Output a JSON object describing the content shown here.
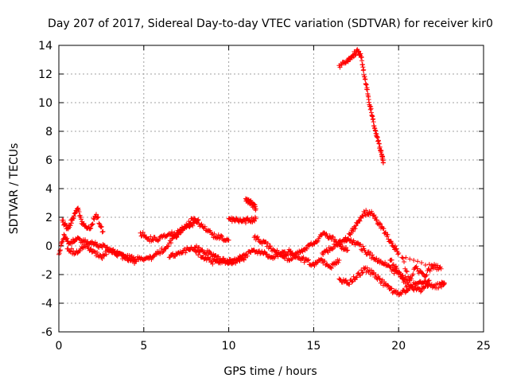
{
  "chart_data": {
    "type": "scatter",
    "title": "Day 207 of 2017, Sidereal Day-to-day VTEC variation (SDTVAR) for receiver kir0",
    "xlabel": "GPS time / hours",
    "ylabel": "SDTVAR / TECUs",
    "xlim": [
      0,
      25
    ],
    "ylim": [
      -6,
      14
    ],
    "xticks": [
      "0",
      "5",
      "10",
      "15",
      "20",
      "25"
    ],
    "yticks": [
      "-6",
      "-4",
      "-2",
      "0",
      "2",
      "4",
      "6",
      "8",
      "10",
      "12",
      "14"
    ],
    "marker": "+",
    "color": "#ff0000",
    "grid": true,
    "series": [
      {
        "name": "main-band",
        "x": [
          0.0,
          0.3,
          0.6,
          1.0,
          1.5,
          2.0,
          2.5,
          3.0,
          3.5,
          4.0,
          4.5,
          5.0,
          5.5,
          6.0,
          6.5,
          7.0,
          7.5,
          8.0,
          8.5,
          9.0,
          9.5,
          10.0
        ],
        "y": [
          -0.6,
          0.8,
          0.2,
          0.5,
          0.3,
          0.2,
          0.0,
          -0.3,
          -0.5,
          -0.8,
          -0.9,
          -1.0,
          -0.8,
          -0.4,
          0.2,
          0.8,
          1.5,
          1.9,
          1.3,
          0.8,
          0.6,
          0.4
        ]
      },
      {
        "name": "band-upper-a",
        "x": [
          0.2,
          0.5,
          0.8,
          1.1,
          1.4,
          1.8,
          2.2,
          2.6
        ],
        "y": [
          1.8,
          1.2,
          1.8,
          2.6,
          1.5,
          1.2,
          2.2,
          1.0
        ]
      },
      {
        "name": "band-lower-a",
        "x": [
          0.5,
          1.0,
          1.5,
          2.0,
          2.5,
          3.0,
          3.5,
          4.0,
          4.5
        ],
        "y": [
          -0.2,
          -0.5,
          0.1,
          -0.4,
          -0.8,
          -0.2,
          -0.6,
          -0.9,
          -1.1
        ]
      },
      {
        "name": "band-mid-b",
        "x": [
          4.8,
          5.3,
          5.8,
          6.3,
          6.8,
          7.3,
          7.8,
          8.2
        ],
        "y": [
          0.9,
          0.5,
          0.4,
          0.7,
          0.9,
          1.1,
          1.5,
          1.8
        ]
      },
      {
        "name": "band-lower-b",
        "x": [
          6.5,
          7.0,
          7.5,
          8.0,
          8.5,
          9.0,
          9.5,
          10.0,
          10.5,
          11.0,
          11.5
        ],
        "y": [
          -0.8,
          -0.5,
          -0.3,
          -0.1,
          -0.4,
          -0.6,
          -0.9,
          -1.2,
          -1.0,
          -0.6,
          -0.3
        ]
      },
      {
        "name": "band-c",
        "x": [
          8.0,
          8.5,
          9.0,
          9.5,
          10.0,
          10.5,
          11.0
        ],
        "y": [
          -0.3,
          -0.8,
          -1.1,
          -1.2,
          -1.1,
          -1.0,
          -0.8
        ]
      },
      {
        "name": "segment-10-11",
        "x": [
          10.0,
          10.4,
          10.8,
          11.2,
          11.6
        ],
        "y": [
          1.9,
          1.8,
          1.7,
          1.8,
          1.9
        ]
      },
      {
        "name": "segment-11",
        "x": [
          11.0,
          11.2,
          11.4,
          11.6
        ],
        "y": [
          3.3,
          3.1,
          2.9,
          2.6
        ]
      },
      {
        "name": "mid-band",
        "x": [
          11.5,
          12.0,
          12.5,
          13.0,
          13.5,
          14.0,
          14.5,
          15.0,
          15.5,
          16.0,
          16.5,
          17.0
        ],
        "y": [
          0.6,
          0.3,
          -0.2,
          -0.6,
          -0.9,
          -0.6,
          -0.3,
          0.2,
          0.8,
          0.6,
          0.1,
          -0.3
        ]
      },
      {
        "name": "mid-band-lower",
        "x": [
          11.5,
          12.0,
          12.5,
          13.0,
          13.5,
          14.0,
          14.5,
          15.0,
          15.5,
          16.0,
          16.5
        ],
        "y": [
          -0.3,
          -0.5,
          -0.8,
          -0.6,
          -0.4,
          -0.7,
          -1.0,
          -1.3,
          -1.0,
          -1.5,
          -1.0
        ]
      },
      {
        "name": "late-upper",
        "x": [
          16.8,
          17.2,
          17.6,
          18.0,
          18.4,
          18.8,
          19.2,
          19.6,
          20.0
        ],
        "y": [
          0.3,
          0.9,
          1.6,
          2.3,
          2.4,
          1.6,
          0.9,
          0.2,
          -0.5
        ]
      },
      {
        "name": "late-mid",
        "x": [
          15.5,
          16.0,
          16.5,
          17.0,
          17.5,
          18.0,
          18.5,
          19.0,
          19.5,
          20.0,
          20.5
        ],
        "y": [
          -0.5,
          -0.2,
          0.3,
          0.5,
          0.2,
          -0.3,
          -0.8,
          -1.2,
          -1.5,
          -2.0,
          -2.4
        ]
      },
      {
        "name": "late-lower",
        "x": [
          16.5,
          17.0,
          17.5,
          18.0,
          18.5,
          19.0,
          19.5,
          20.0,
          20.5,
          21.0,
          21.5,
          22.0,
          22.5,
          22.7
        ],
        "y": [
          -2.3,
          -2.6,
          -2.2,
          -1.6,
          -1.9,
          -2.5,
          -3.0,
          -3.4,
          -3.1,
          -2.6,
          -2.5,
          -2.9,
          -2.7,
          -2.6
        ]
      },
      {
        "name": "late-scatter",
        "x": [
          19.5,
          20.0,
          20.5,
          21.0,
          21.5,
          22.0,
          22.5,
          20.2,
          20.8,
          21.3,
          21.8
        ],
        "y": [
          -1.0,
          -1.8,
          -2.8,
          -1.5,
          -2.1,
          -1.4,
          -1.6,
          -0.8,
          -2.9,
          -3.2,
          -2.4
        ]
      },
      {
        "name": "spike",
        "x": [
          16.5,
          17.0,
          17.3,
          17.6,
          17.8,
          18.0,
          18.2,
          18.4,
          18.6,
          18.8,
          19.0,
          19.1
        ],
        "y": [
          12.6,
          13.0,
          13.3,
          13.6,
          13.2,
          11.8,
          10.5,
          9.3,
          8.2,
          7.3,
          6.4,
          5.8
        ]
      }
    ]
  }
}
